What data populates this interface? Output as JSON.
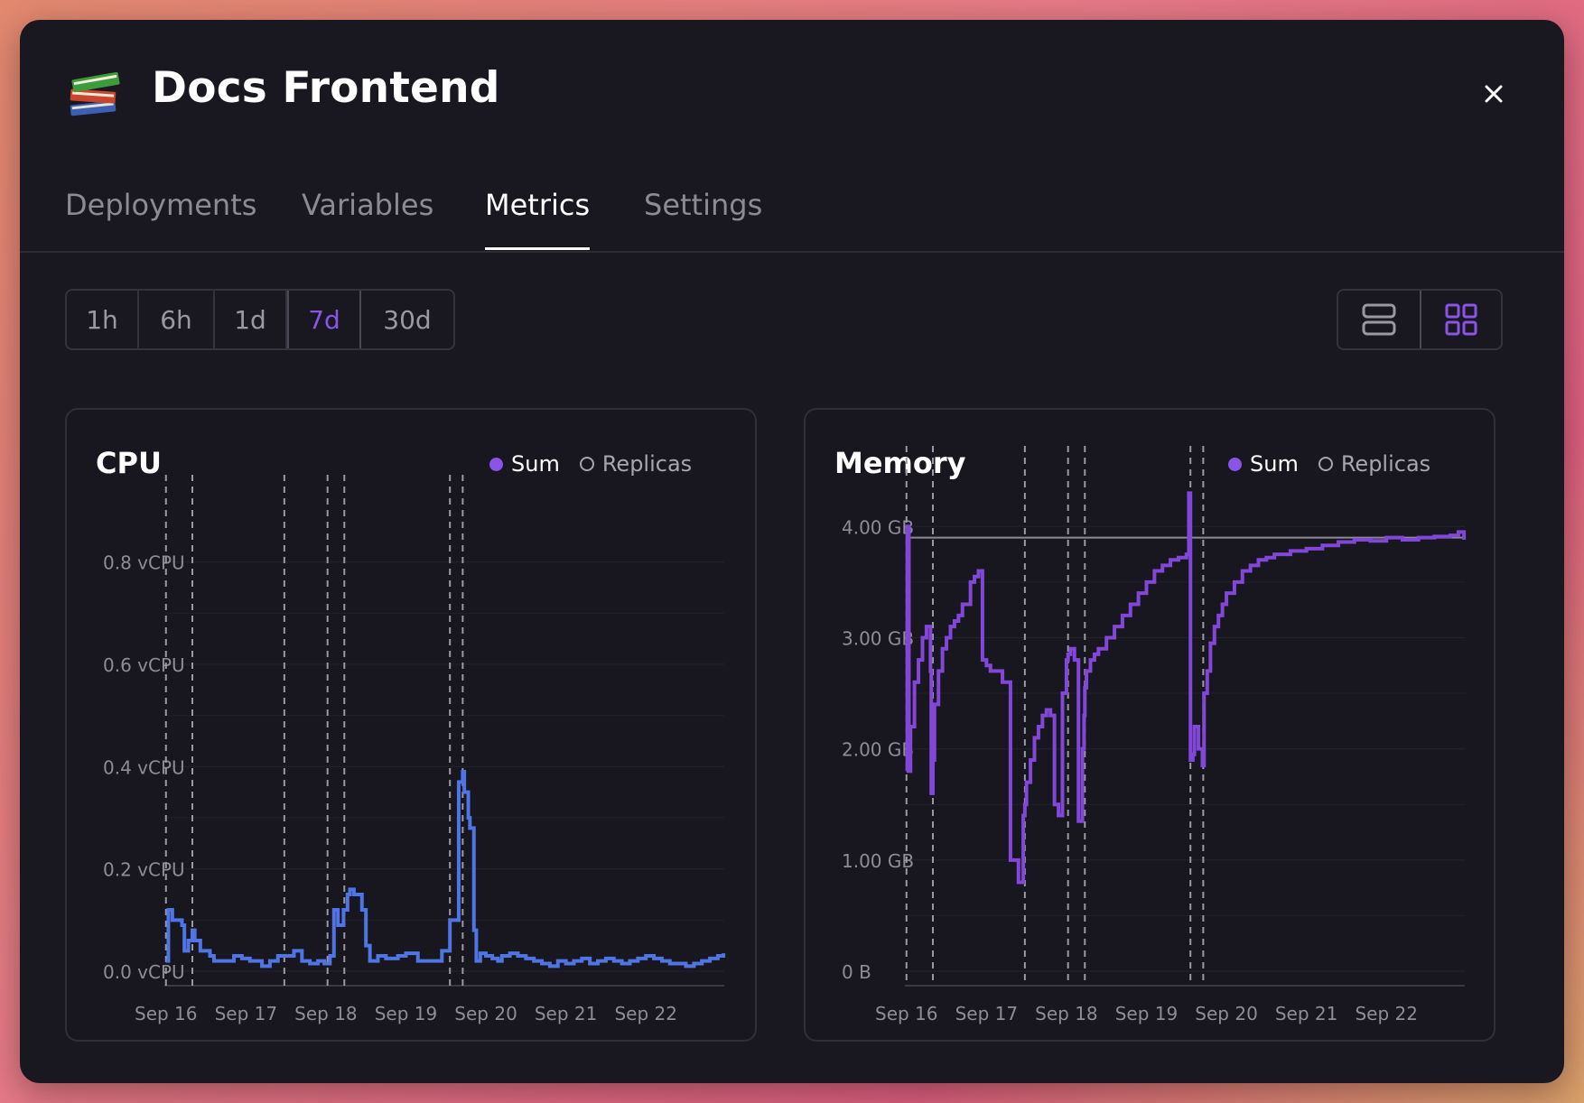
{
  "header": {
    "icon": "books-icon",
    "title": "Docs Frontend",
    "close_icon": "close-icon"
  },
  "tabs": [
    {
      "label": "Deployments",
      "active": false
    },
    {
      "label": "Variables",
      "active": false
    },
    {
      "label": "Metrics",
      "active": true
    },
    {
      "label": "Settings",
      "active": false
    }
  ],
  "time_ranges": [
    {
      "label": "1h",
      "active": false
    },
    {
      "label": "6h",
      "active": false
    },
    {
      "label": "1d",
      "active": false
    },
    {
      "label": "7d",
      "active": true
    },
    {
      "label": "30d",
      "active": false
    }
  ],
  "layout_toggle": {
    "options": [
      {
        "icon": "list-layout-icon",
        "active": false
      },
      {
        "icon": "grid-layout-icon",
        "active": true
      }
    ]
  },
  "colors": {
    "accent": "#8a55e6",
    "cpu_line": "#4f74e3",
    "memory_line": "#8246d8",
    "deploy_marker": "#9a9aa2",
    "limit_line": "#8a8a92"
  },
  "chart_data": [
    {
      "type": "line",
      "title": "CPU",
      "legend": [
        {
          "name": "Sum",
          "selected": true
        },
        {
          "name": "Replicas",
          "selected": false
        }
      ],
      "x_ticks": [
        "Sep 16",
        "Sep 17",
        "Sep 18",
        "Sep 19",
        "Sep 20",
        "Sep 21",
        "Sep 22"
      ],
      "y_ticks": [
        "0.0 vCPU",
        "0.2 vCPU",
        "0.4 vCPU",
        "0.6 vCPU",
        "0.8 vCPU"
      ],
      "ylim": [
        0,
        0.9
      ],
      "x_range_days": [
        15.98,
        22.98
      ],
      "deploy_markers_days": [
        16.0,
        16.33,
        17.48,
        18.02,
        18.23,
        19.55,
        19.71
      ],
      "series": [
        {
          "name": "Sum",
          "x_days": [
            16.0,
            16.03,
            16.08,
            16.2,
            16.23,
            16.28,
            16.33,
            16.36,
            16.43,
            16.55,
            16.6,
            16.75,
            16.85,
            16.95,
            17.05,
            17.2,
            17.3,
            17.4,
            17.48,
            17.6,
            17.7,
            17.8,
            17.9,
            17.98,
            18.05,
            18.1,
            18.15,
            18.22,
            18.27,
            18.3,
            18.35,
            18.45,
            18.5,
            18.55,
            18.65,
            18.75,
            18.9,
            19.0,
            19.15,
            19.3,
            19.45,
            19.55,
            19.62,
            19.66,
            19.71,
            19.73,
            19.78,
            19.8,
            19.85,
            19.88,
            19.93,
            20.0,
            20.08,
            20.15,
            20.2,
            20.3,
            20.4,
            20.5,
            20.6,
            20.7,
            20.8,
            20.9,
            21.0,
            21.1,
            21.2,
            21.3,
            21.4,
            21.5,
            21.6,
            21.7,
            21.8,
            21.9,
            22.0,
            22.1,
            22.2,
            22.3,
            22.4,
            22.5,
            22.6,
            22.7,
            22.8,
            22.9,
            22.97
          ],
          "values": [
            0.02,
            0.12,
            0.1,
            0.09,
            0.04,
            0.06,
            0.08,
            0.06,
            0.04,
            0.03,
            0.02,
            0.02,
            0.03,
            0.025,
            0.02,
            0.01,
            0.02,
            0.03,
            0.03,
            0.04,
            0.02,
            0.015,
            0.02,
            0.015,
            0.03,
            0.12,
            0.09,
            0.12,
            0.15,
            0.16,
            0.15,
            0.12,
            0.05,
            0.02,
            0.03,
            0.025,
            0.03,
            0.035,
            0.02,
            0.02,
            0.04,
            0.1,
            0.1,
            0.37,
            0.39,
            0.35,
            0.3,
            0.28,
            0.08,
            0.02,
            0.035,
            0.03,
            0.025,
            0.02,
            0.03,
            0.035,
            0.03,
            0.025,
            0.02,
            0.015,
            0.01,
            0.02,
            0.015,
            0.02,
            0.025,
            0.015,
            0.02,
            0.025,
            0.02,
            0.015,
            0.02,
            0.025,
            0.03,
            0.025,
            0.02,
            0.015,
            0.015,
            0.01,
            0.015,
            0.02,
            0.025,
            0.03,
            0.035
          ]
        }
      ]
    },
    {
      "type": "line",
      "title": "Memory",
      "legend": [
        {
          "name": "Sum",
          "selected": true
        },
        {
          "name": "Replicas",
          "selected": false
        }
      ],
      "x_ticks": [
        "Sep 16",
        "Sep 17",
        "Sep 18",
        "Sep 19",
        "Sep 20",
        "Sep 21",
        "Sep 22"
      ],
      "y_ticks": [
        "0 B",
        "1.00 GB",
        "2.00 GB",
        "3.00 GB",
        "4.00 GB"
      ],
      "ylim": [
        0,
        4.4
      ],
      "x_range_days": [
        15.98,
        22.98
      ],
      "limit_line_value": 3.9,
      "deploy_markers_days": [
        16.0,
        16.33,
        17.48,
        18.02,
        18.23,
        19.55,
        19.71
      ],
      "series": [
        {
          "name": "Sum",
          "x_days": [
            16.0,
            16.01,
            16.03,
            16.05,
            16.1,
            16.15,
            16.2,
            16.25,
            16.3,
            16.31,
            16.33,
            16.35,
            16.4,
            16.45,
            16.5,
            16.55,
            16.6,
            16.65,
            16.7,
            16.75,
            16.8,
            16.85,
            16.9,
            16.95,
            17.0,
            17.05,
            17.1,
            17.2,
            17.3,
            17.4,
            17.46,
            17.48,
            17.5,
            17.55,
            17.6,
            17.65,
            17.7,
            17.75,
            17.8,
            17.85,
            17.9,
            17.95,
            18.0,
            18.02,
            18.05,
            18.1,
            18.15,
            18.2,
            18.22,
            18.23,
            18.25,
            18.3,
            18.35,
            18.4,
            18.5,
            18.6,
            18.7,
            18.8,
            18.9,
            19.0,
            19.1,
            19.2,
            19.3,
            19.4,
            19.5,
            19.53,
            19.55,
            19.58,
            19.6,
            19.65,
            19.7,
            19.72,
            19.76,
            19.8,
            19.85,
            19.9,
            19.95,
            20.0,
            20.1,
            20.2,
            20.3,
            20.4,
            20.5,
            20.6,
            20.8,
            21.0,
            21.2,
            21.4,
            21.6,
            21.8,
            22.0,
            22.2,
            22.4,
            22.6,
            22.8,
            22.9,
            22.97
          ],
          "values": [
            1.8,
            4.0,
            1.8,
            2.2,
            2.6,
            2.8,
            3.0,
            3.1,
            2.7,
            1.6,
            1.9,
            2.4,
            2.7,
            2.9,
            3.0,
            3.1,
            3.15,
            3.2,
            3.3,
            3.3,
            3.5,
            3.55,
            3.6,
            2.8,
            2.75,
            2.7,
            2.7,
            2.6,
            1.0,
            0.8,
            1.4,
            1.5,
            1.7,
            1.9,
            2.1,
            2.2,
            2.3,
            2.35,
            2.3,
            1.5,
            1.4,
            2.5,
            2.8,
            2.85,
            2.9,
            2.8,
            1.35,
            2.0,
            2.3,
            2.55,
            2.7,
            2.8,
            2.85,
            2.9,
            3.0,
            3.1,
            3.2,
            3.3,
            3.4,
            3.5,
            3.6,
            3.65,
            3.7,
            3.72,
            3.75,
            4.3,
            1.9,
            1.95,
            2.2,
            2.0,
            1.85,
            2.5,
            2.7,
            2.95,
            3.1,
            3.2,
            3.3,
            3.4,
            3.5,
            3.6,
            3.65,
            3.7,
            3.72,
            3.75,
            3.78,
            3.8,
            3.83,
            3.86,
            3.88,
            3.87,
            3.9,
            3.88,
            3.9,
            3.91,
            3.92,
            3.95,
            3.88
          ]
        }
      ]
    }
  ]
}
